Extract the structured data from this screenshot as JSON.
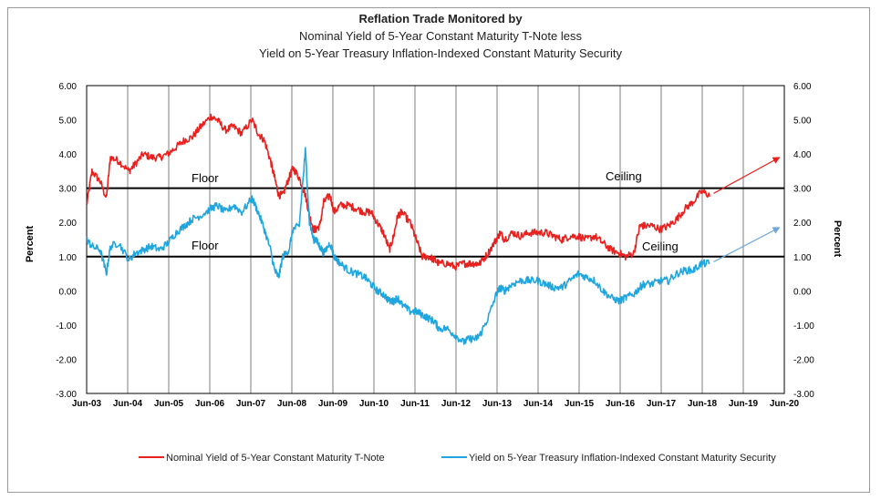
{
  "chart_data": {
    "type": "line",
    "title": "Reflation Trade Monitored by",
    "subtitle_lines": [
      "Nominal Yield of 5-Year Constant Maturity T-Note  less",
      "Yield on 5-Year Treasury Inflation-Indexed Constant Maturity Security"
    ],
    "ylabel_left": "Percent",
    "ylabel_right": "Percent",
    "ylim": [
      -3,
      6
    ],
    "yticks": [
      "6.00",
      "5.00",
      "4.00",
      "3.00",
      "2.00",
      "1.00",
      "0.00",
      "-1.00",
      "-2.00",
      "-3.00"
    ],
    "ytick_values": [
      6,
      5,
      4,
      3,
      2,
      1,
      0,
      -1,
      -2,
      -3
    ],
    "xlim": [
      2003.42,
      2020.42
    ],
    "xticks": [
      "Jun-03",
      "Jun-04",
      "Jun-05",
      "Jun-06",
      "Jun-07",
      "Jun-08",
      "Jun-09",
      "Jun-10",
      "Jun-11",
      "Jun-12",
      "Jun-13",
      "Jun-14",
      "Jun-15",
      "Jun-16",
      "Jun-17",
      "Jun-18",
      "Jun-19",
      "Jun-20"
    ],
    "grid": "vertical",
    "legend_position": "bottom",
    "series": [
      {
        "name": "Nominal Yield of 5-Year Constant Maturity T-Note",
        "color": "#e8201e",
        "x": [
          2003.42,
          2003.55,
          2003.75,
          2003.9,
          2004.0,
          2004.2,
          2004.45,
          2004.6,
          2004.8,
          2005.0,
          2005.2,
          2005.4,
          2005.6,
          2005.8,
          2006.0,
          2006.2,
          2006.45,
          2006.6,
          2006.8,
          2007.0,
          2007.2,
          2007.45,
          2007.6,
          2007.75,
          2007.9,
          2008.0,
          2008.1,
          2008.2,
          2008.35,
          2008.45,
          2008.6,
          2008.75,
          2008.85,
          2008.95,
          2009.0,
          2009.1,
          2009.2,
          2009.35,
          2009.45,
          2009.6,
          2009.8,
          2010.0,
          2010.2,
          2010.35,
          2010.5,
          2010.65,
          2010.8,
          2010.9,
          2011.0,
          2011.1,
          2011.3,
          2011.45,
          2011.6,
          2011.75,
          2011.9,
          2012.0,
          2012.2,
          2012.4,
          2012.6,
          2012.75,
          2012.9,
          2013.0,
          2013.2,
          2013.4,
          2013.5,
          2013.6,
          2013.8,
          2014.0,
          2014.2,
          2014.4,
          2014.6,
          2014.8,
          2015.0,
          2015.2,
          2015.4,
          2015.6,
          2015.8,
          2016.0,
          2016.2,
          2016.4,
          2016.55,
          2016.75,
          2016.9,
          2017.0,
          2017.2,
          2017.4,
          2017.6,
          2017.8,
          2018.0,
          2018.2,
          2018.4,
          2018.6
        ],
        "y": [
          2.5,
          3.5,
          3.2,
          2.7,
          3.9,
          3.8,
          3.5,
          3.7,
          4.0,
          3.9,
          3.9,
          4.0,
          4.2,
          4.4,
          4.5,
          4.8,
          5.1,
          5.0,
          4.7,
          4.8,
          4.6,
          5.0,
          4.6,
          4.4,
          3.8,
          3.3,
          2.8,
          2.8,
          3.3,
          3.6,
          3.3,
          2.8,
          2.2,
          1.8,
          1.8,
          1.9,
          2.6,
          2.8,
          2.3,
          2.5,
          2.5,
          2.4,
          2.3,
          2.3,
          2.0,
          1.7,
          1.2,
          1.6,
          2.2,
          2.3,
          2.0,
          1.5,
          1.0,
          1.0,
          0.9,
          0.8,
          0.8,
          0.7,
          0.8,
          0.8,
          0.8,
          0.8,
          1.1,
          1.5,
          1.7,
          1.5,
          1.7,
          1.6,
          1.7,
          1.7,
          1.7,
          1.6,
          1.5,
          1.6,
          1.6,
          1.5,
          1.6,
          1.4,
          1.2,
          1.1,
          1.0,
          1.1,
          1.9,
          1.9,
          1.9,
          1.8,
          1.9,
          2.1,
          2.4,
          2.6,
          2.9,
          2.8
        ]
      },
      {
        "name": "Yield on 5-Year Treasury Inflation-Indexed Constant Maturity Security",
        "color": "#1fa6de",
        "x": [
          2003.42,
          2003.55,
          2003.75,
          2003.9,
          2004.0,
          2004.2,
          2004.45,
          2004.6,
          2004.8,
          2005.0,
          2005.2,
          2005.4,
          2005.6,
          2005.8,
          2006.0,
          2006.2,
          2006.45,
          2006.6,
          2006.8,
          2007.0,
          2007.2,
          2007.45,
          2007.6,
          2007.75,
          2007.9,
          2008.0,
          2008.1,
          2008.2,
          2008.35,
          2008.45,
          2008.6,
          2008.75,
          2008.85,
          2008.95,
          2009.0,
          2009.1,
          2009.2,
          2009.35,
          2009.45,
          2009.6,
          2009.8,
          2010.0,
          2010.2,
          2010.35,
          2010.5,
          2010.65,
          2010.8,
          2010.9,
          2011.0,
          2011.1,
          2011.3,
          2011.45,
          2011.6,
          2011.75,
          2011.9,
          2012.0,
          2012.2,
          2012.4,
          2012.6,
          2012.75,
          2012.9,
          2013.0,
          2013.2,
          2013.4,
          2013.5,
          2013.6,
          2013.8,
          2014.0,
          2014.2,
          2014.4,
          2014.6,
          2014.8,
          2015.0,
          2015.2,
          2015.4,
          2015.6,
          2015.8,
          2016.0,
          2016.2,
          2016.4,
          2016.55,
          2016.75,
          2016.9,
          2017.0,
          2017.2,
          2017.4,
          2017.6,
          2017.8,
          2018.0,
          2018.2,
          2018.4,
          2018.6
        ],
        "y": [
          1.5,
          1.3,
          1.2,
          0.5,
          1.3,
          1.4,
          0.9,
          1.1,
          1.2,
          1.3,
          1.2,
          1.4,
          1.7,
          1.9,
          2.1,
          2.2,
          2.4,
          2.5,
          2.3,
          2.5,
          2.3,
          2.7,
          2.3,
          1.8,
          1.2,
          0.6,
          0.4,
          1.0,
          1.2,
          1.8,
          1.9,
          4.1,
          2.0,
          1.5,
          1.5,
          1.3,
          1.1,
          1.4,
          1.0,
          0.8,
          0.6,
          0.5,
          0.4,
          0.2,
          0.0,
          -0.1,
          -0.3,
          -0.3,
          -0.2,
          -0.4,
          -0.6,
          -0.6,
          -0.7,
          -0.8,
          -0.9,
          -1.1,
          -1.1,
          -1.3,
          -1.5,
          -1.4,
          -1.4,
          -1.3,
          -0.8,
          -0.1,
          0.1,
          0.0,
          0.2,
          0.3,
          0.3,
          0.3,
          0.2,
          0.1,
          0.1,
          0.3,
          0.5,
          0.4,
          0.3,
          0.0,
          -0.2,
          -0.3,
          -0.2,
          -0.1,
          0.1,
          0.2,
          0.2,
          0.3,
          0.3,
          0.5,
          0.6,
          0.6,
          0.8,
          0.8
        ]
      }
    ],
    "reference_lines": [
      {
        "y": 3.0,
        "labels": [
          "Floor",
          "Ceiling"
        ]
      },
      {
        "y": 1.0,
        "labels": [
          "Floor",
          "Ceiling"
        ]
      }
    ],
    "projections": [
      {
        "from": [
          2018.7,
          2.85
        ],
        "to": [
          2020.3,
          3.9
        ],
        "color": "#e8201e"
      },
      {
        "from": [
          2018.7,
          0.85
        ],
        "to": [
          2020.3,
          1.85
        ],
        "color": "#6fa8d6"
      }
    ]
  }
}
